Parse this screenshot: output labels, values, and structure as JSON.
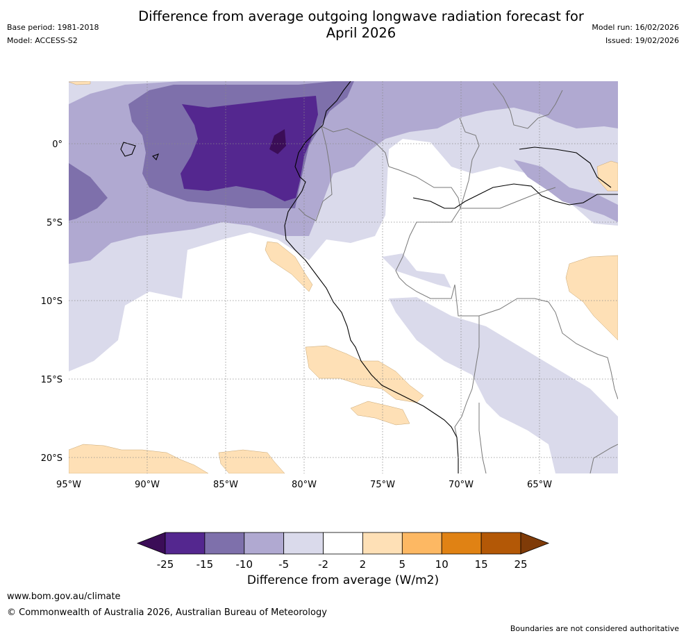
{
  "title": {
    "line1": "Difference from average outgoing longwave radiation forecast for",
    "line2": "April 2026"
  },
  "meta_left": {
    "base_period": "Base period: 1981-2018",
    "model": "Model: ACCESS-S2"
  },
  "meta_right": {
    "model_run": "Model run: 16/02/2026",
    "issued": "Issued: 19/02/2026"
  },
  "axes": {
    "lon_labels": [
      "95°W",
      "90°W",
      "85°W",
      "80°W",
      "75°W",
      "70°W",
      "65°W"
    ],
    "lat_labels": [
      "0°",
      "5°S",
      "10°S",
      "15°S",
      "20°S"
    ]
  },
  "colorbar": {
    "title": "Difference from average (W/m2)",
    "ticks": [
      "-25",
      "-15",
      "-10",
      "-5",
      "-2",
      "2",
      "5",
      "10",
      "15",
      "25"
    ],
    "colors": [
      "#3b0d57",
      "#54278f",
      "#7e70ab",
      "#b0a9d1",
      "#dadaeb",
      "#ffffff",
      "#fee0b6",
      "#fdb863",
      "#e08214",
      "#b35806",
      "#7f3b08"
    ]
  },
  "footer": {
    "url": "www.bom.gov.au/climate",
    "copyright": "© Commonwealth of Australia 2026, Australian Bureau of Meteorology",
    "note": "Boundaries are not considered authoritative"
  }
}
